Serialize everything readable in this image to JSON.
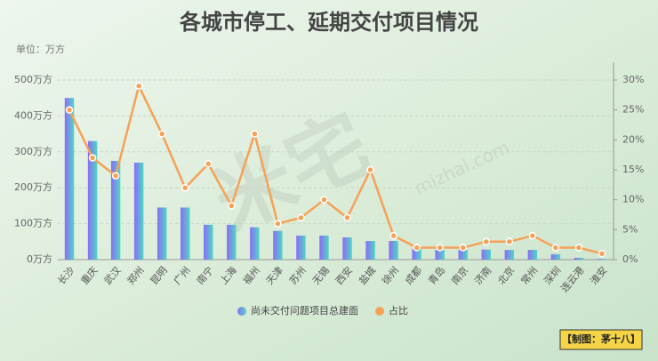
{
  "chart_data": {
    "type": "bar-line",
    "title": "各城市停工、延期交付项目情况",
    "unit_label": "单位：万方",
    "watermark": [
      "米宅",
      "mizhai.com"
    ],
    "credit": "【制图：茅十八】",
    "categories": [
      "长沙",
      "重庆",
      "武汉",
      "郑州",
      "昆明",
      "广州",
      "南宁",
      "上海",
      "福州",
      "天津",
      "苏州",
      "无锡",
      "西安",
      "盐城",
      "徐州",
      "成都",
      "青岛",
      "南京",
      "济南",
      "北京",
      "常州",
      "深圳",
      "连云港",
      "淮安"
    ],
    "series": [
      {
        "name": "尚未交付问题项目总建面",
        "type": "bar",
        "color": [
          "#8b6cf5",
          "#4fd6c6"
        ],
        "values": [
          450,
          330,
          275,
          270,
          145,
          145,
          97,
          97,
          90,
          80,
          67,
          67,
          62,
          52,
          52,
          30,
          27,
          27,
          28,
          27,
          27,
          15,
          5,
          2
        ]
      },
      {
        "name": "占比",
        "type": "line",
        "axis": "y2",
        "color": "#f7a156",
        "values": [
          25,
          17,
          14,
          29,
          21,
          12,
          16,
          9,
          21,
          6,
          7,
          10,
          7,
          15,
          4,
          2,
          2,
          2,
          3,
          3,
          4,
          2,
          2,
          1
        ]
      }
    ],
    "ylim": [
      0,
      500
    ],
    "yticks": [
      {
        "value": 0,
        "label": "0万方"
      },
      {
        "value": 100,
        "label": "100万方"
      },
      {
        "value": 200,
        "label": "200万方"
      },
      {
        "value": 300,
        "label": "300万方"
      },
      {
        "value": 400,
        "label": "400万方"
      },
      {
        "value": 500,
        "label": "500万方"
      }
    ],
    "y2lim": [
      0,
      30
    ],
    "y2ticks": [
      {
        "value": 0,
        "label": "0%"
      },
      {
        "value": 5,
        "label": "5%"
      },
      {
        "value": 10,
        "label": "10%"
      },
      {
        "value": 15,
        "label": "15%"
      },
      {
        "value": 20,
        "label": "20%"
      },
      {
        "value": 25,
        "label": "25%"
      },
      {
        "value": 30,
        "label": "30%"
      }
    ],
    "grid": true
  }
}
